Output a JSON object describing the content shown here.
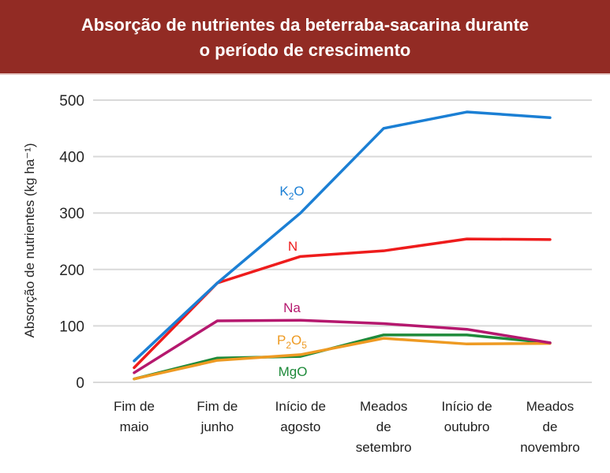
{
  "chart_data": {
    "type": "line",
    "title": "Absorção de nutrientes da beterraba-sacarina durante o período de crescimento",
    "title_lines": [
      "Absorção de nutrientes da beterraba-sacarina durante",
      "o período de crescimento"
    ],
    "xlabel": "",
    "ylabel": "Absorção de nutrientes (kg ha⁻¹)",
    "ylim": [
      0,
      500
    ],
    "yticks": [
      0,
      100,
      200,
      300,
      400,
      500
    ],
    "grid": true,
    "legend": "inline labels",
    "categories": [
      [
        "Fim de",
        "maio"
      ],
      [
        "Fim de",
        "junho"
      ],
      [
        "Início de",
        "agosto"
      ],
      [
        "Meados",
        "de",
        "setembro"
      ],
      [
        "Início de",
        "outubro"
      ],
      [
        "Meados",
        "de",
        "novembro"
      ]
    ],
    "series": [
      {
        "name": "K2O",
        "label_main": "K",
        "label_sub": "2",
        "label_tail": "O",
        "color": "#1b7fd4",
        "values": [
          38,
          176,
          300,
          450,
          479,
          469
        ]
      },
      {
        "name": "N",
        "label_main": "N",
        "label_sub": "",
        "label_tail": "",
        "color": "#ee1c1c",
        "values": [
          26,
          176,
          223,
          233,
          254,
          253
        ]
      },
      {
        "name": "Na",
        "label_main": "Na",
        "label_sub": "",
        "label_tail": "",
        "color": "#b5186e",
        "values": [
          17,
          109,
          110,
          104,
          94,
          70
        ]
      },
      {
        "name": "P2O5",
        "label_main": "P",
        "label_sub": "2",
        "label_tail": "O",
        "label_sub2": "5",
        "color": "#ee9a22",
        "values": [
          6,
          39,
          49,
          78,
          68,
          69
        ]
      },
      {
        "name": "MgO",
        "label_main": "MgO",
        "label_sub": "",
        "label_tail": "",
        "color": "#1e8a3a",
        "values": [
          6,
          43,
          46,
          84,
          84,
          70
        ]
      }
    ]
  }
}
